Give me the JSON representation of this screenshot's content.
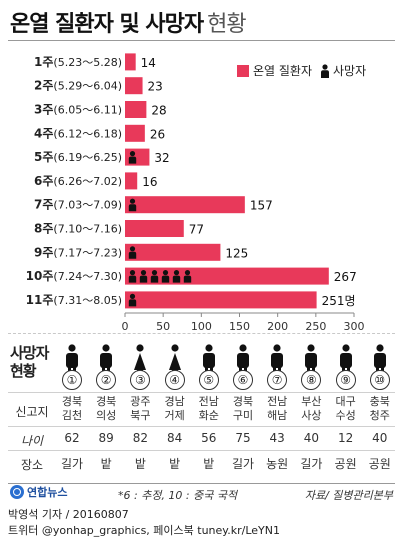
{
  "title": {
    "main": "온열 질환자 및 사망자",
    "sub": "현황"
  },
  "legend": {
    "patients": "온열 질환자",
    "deaths": "사망자"
  },
  "chart_data": {
    "type": "bar",
    "orientation": "horizontal",
    "categories": [
      "1주(5.23～5.28)",
      "2주(5.29～6.04)",
      "3주(6.05～6.11)",
      "4주(6.12～6.18)",
      "5주(6.19～6.25)",
      "6주(6.26～7.02)",
      "7주(7.03～7.09)",
      "8주(7.10～7.16)",
      "9주(7.17～7.23)",
      "10주(7.24～7.30)",
      "11주(7.31～8.05)"
    ],
    "series": [
      {
        "name": "온열 질환자",
        "values": [
          14,
          23,
          28,
          26,
          32,
          16,
          157,
          77,
          125,
          267,
          251
        ]
      },
      {
        "name": "사망자",
        "values": [
          0,
          0,
          0,
          0,
          1,
          0,
          1,
          0,
          1,
          6,
          1
        ]
      }
    ],
    "value_labels": [
      "14",
      "23",
      "28",
      "26",
      "32",
      "16",
      "157",
      "77",
      "125",
      "267",
      "251명"
    ],
    "xlim": [
      0,
      300
    ],
    "xticks": [
      "0",
      "50",
      "100",
      "150",
      "200",
      "250",
      "300"
    ],
    "bar_color": "#e8395a",
    "death_icon_color": "#111111",
    "legend_position": "top-right"
  },
  "victims": {
    "heading_line1": "사망자",
    "heading_line2": "현황",
    "row_labels": {
      "region": "신고지",
      "age": "나이",
      "place": "장소"
    },
    "items": [
      {
        "num": "①",
        "gender": "male",
        "region_line1": "경북",
        "region_line2": "김천",
        "age": "62",
        "place": "길가"
      },
      {
        "num": "②",
        "gender": "male",
        "region_line1": "경북",
        "region_line2": "의성",
        "age": "89",
        "place": "밭"
      },
      {
        "num": "③",
        "gender": "female",
        "region_line1": "광주",
        "region_line2": "북구",
        "age": "82",
        "place": "밭"
      },
      {
        "num": "④",
        "gender": "female",
        "region_line1": "경남",
        "region_line2": "거제",
        "age": "84",
        "place": "밭"
      },
      {
        "num": "⑤",
        "gender": "male",
        "region_line1": "전남",
        "region_line2": "화순",
        "age": "56",
        "place": "밭"
      },
      {
        "num": "⑥",
        "gender": "male",
        "region_line1": "경북",
        "region_line2": "구미",
        "age": "75",
        "place": "길가"
      },
      {
        "num": "⑦",
        "gender": "male",
        "region_line1": "전남",
        "region_line2": "해남",
        "age": "43",
        "place": "농원"
      },
      {
        "num": "⑧",
        "gender": "male",
        "region_line1": "부산",
        "region_line2": "사상",
        "age": "40",
        "place": "길가"
      },
      {
        "num": "⑨",
        "gender": "male",
        "region_line1": "대구",
        "region_line2": "수성",
        "age": "12",
        "place": "공원"
      },
      {
        "num": "⑩",
        "gender": "male",
        "region_line1": "충북",
        "region_line2": "청주",
        "age": "40",
        "place": "공원"
      }
    ]
  },
  "footer": {
    "logo_text": "연합뉴스",
    "note": "*6 : 추정, 10 : 중국 국적",
    "source": "자료/ 질병관리본부",
    "credit": "박영석 기자 / 20160807",
    "twitter": "트위터 @yonhap_graphics, 페이스북 tuney.kr/LeYN1"
  }
}
